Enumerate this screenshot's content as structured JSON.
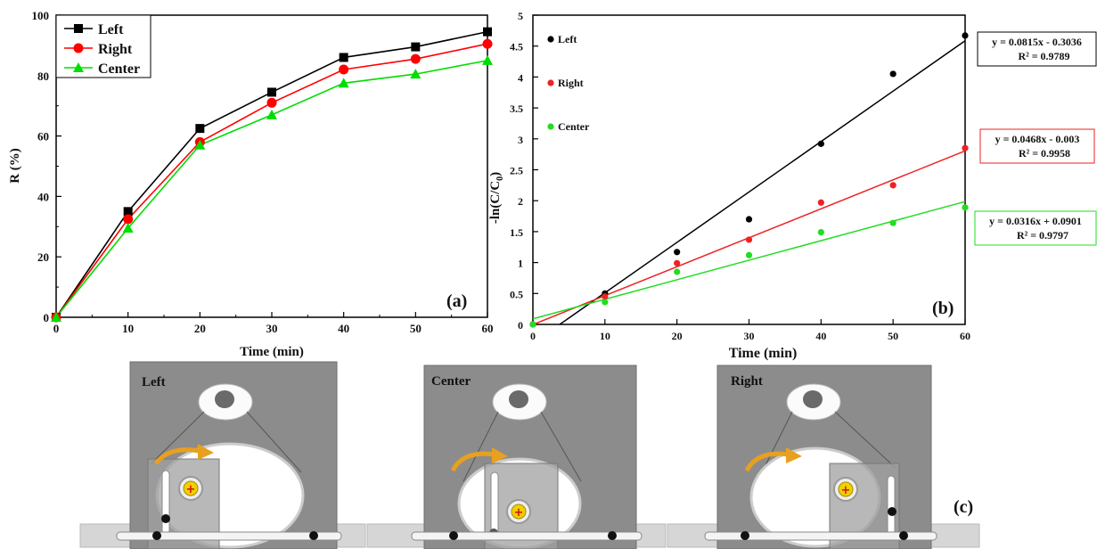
{
  "chart_data": [
    {
      "type": "line",
      "panel_label": "(a)",
      "xlabel": "Time (min)",
      "ylabel": "R (%)",
      "xlim": [
        0,
        60
      ],
      "ylim": [
        0,
        100
      ],
      "xticks": [
        0,
        10,
        20,
        30,
        40,
        50,
        60
      ],
      "yticks": [
        0,
        20,
        40,
        60,
        80,
        100
      ],
      "x": [
        0,
        10,
        20,
        30,
        40,
        50,
        60
      ],
      "legend_position": "top-left",
      "series": [
        {
          "name": "Left",
          "color": "#000000",
          "marker": "square",
          "values": [
            0,
            35,
            62.5,
            74.5,
            86,
            89.5,
            94.5
          ]
        },
        {
          "name": "Right",
          "color": "#ff0000",
          "marker": "circle",
          "values": [
            0,
            32.5,
            58,
            71,
            82,
            85.5,
            90.5
          ]
        },
        {
          "name": "Center",
          "color": "#00dd00",
          "marker": "triangle",
          "values": [
            0,
            29.5,
            57,
            67,
            77.5,
            80.5,
            85
          ]
        }
      ]
    },
    {
      "type": "scatter",
      "panel_label": "(b)",
      "xlabel": "Time (min)",
      "ylabel": "-ln(C/C0)",
      "ylabel_main": "-ln(C/C",
      "ylabel_sub": "0",
      "ylabel_end": ")",
      "xlim": [
        0,
        60
      ],
      "ylim": [
        0,
        5
      ],
      "xticks": [
        0,
        10,
        20,
        30,
        40,
        50,
        60
      ],
      "yticks": [
        0,
        0.5,
        1,
        1.5,
        2,
        2.5,
        3,
        3.5,
        4,
        4.5,
        5
      ],
      "x": [
        0,
        10,
        20,
        30,
        40,
        50,
        60
      ],
      "legend_position": "top-left",
      "series": [
        {
          "name": "Left",
          "color": "#000000",
          "values": [
            0,
            0.5,
            1.17,
            1.7,
            2.92,
            4.05,
            4.67
          ],
          "fit": {
            "slope": 0.0815,
            "intercept": -0.3036,
            "equation": "y = 0.0815x - 0.3036",
            "r2": "R² = 0.9789"
          }
        },
        {
          "name": "Right",
          "color": "#ee2222",
          "values": [
            0,
            0.45,
            0.99,
            1.37,
            1.97,
            2.25,
            2.85
          ],
          "fit": {
            "slope": 0.0468,
            "intercept": -0.003,
            "equation": "y = 0.0468x - 0.003",
            "r2": "R² = 0.9958"
          }
        },
        {
          "name": "Center",
          "color": "#22dd22",
          "values": [
            0,
            0.36,
            0.85,
            1.12,
            1.49,
            1.64,
            1.89
          ],
          "fit": {
            "slope": 0.0316,
            "intercept": 0.0901,
            "equation": "y = 0.0316x + 0.0901",
            "r2": "R² = 0.9797"
          }
        }
      ]
    }
  ],
  "diagram": {
    "panel_label": "(c)",
    "positions": [
      "Left",
      "Center",
      "Right"
    ]
  },
  "colors": {
    "panel_gray": "#8a8a8a",
    "panel_border": "#6e6e6e",
    "arrow_orange": "#e8a020",
    "marker_yellow": "#f0d000",
    "marker_red": "#dd1111"
  }
}
